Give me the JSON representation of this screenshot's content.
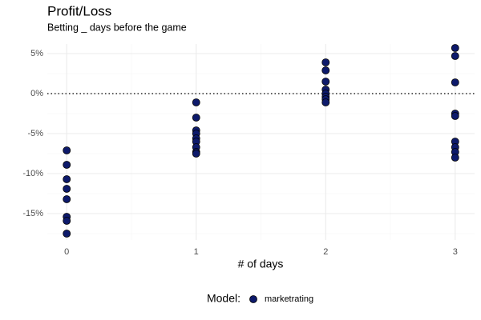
{
  "chart_data": {
    "type": "scatter",
    "title": "Profit/Loss",
    "subtitle": "Betting _ days before the game",
    "x_label": "# of days",
    "legend_title": "Model:",
    "legend_position": "bottom",
    "grid": true,
    "hline": 0,
    "xlim": [
      -0.15,
      3.15
    ],
    "xticks": [
      0,
      1,
      2,
      3
    ],
    "xminorticks": [
      0.5,
      1.5,
      2.5
    ],
    "ylim": [
      -18.3,
      6.2
    ],
    "yticks": [
      {
        "value": -15,
        "label": "-15%"
      },
      {
        "value": -10,
        "label": "-10%"
      },
      {
        "value": -5,
        "label": "-5%"
      },
      {
        "value": 0,
        "label": "0%"
      },
      {
        "value": 5,
        "label": "5%"
      }
    ],
    "yminorticks": [
      -17.5,
      -12.5,
      -7.5,
      -2.5,
      2.5
    ],
    "series": [
      {
        "name": "marketrating",
        "color": "#0d1a6b",
        "x": [
          0,
          0,
          0,
          0,
          0,
          0,
          0,
          0,
          1,
          1,
          1,
          1,
          1,
          1,
          1,
          1,
          1,
          2,
          2,
          2,
          2,
          2,
          2,
          2,
          2,
          3,
          3,
          3,
          3,
          3,
          3,
          3,
          3,
          3
        ],
        "values": [
          -7.1,
          -8.9,
          -10.7,
          -11.9,
          -13.2,
          -15.4,
          -15.9,
          -17.5,
          -1.1,
          -3.0,
          -4.6,
          -5.0,
          -5.6,
          -6.0,
          -6.7,
          -7.3,
          -7.5,
          3.9,
          2.9,
          1.5,
          0.5,
          0.0,
          -0.4,
          -0.7,
          -1.1,
          5.7,
          4.7,
          1.4,
          -2.5,
          -2.8,
          -6.0,
          -6.7,
          -7.3,
          -8.0
        ]
      }
    ]
  }
}
